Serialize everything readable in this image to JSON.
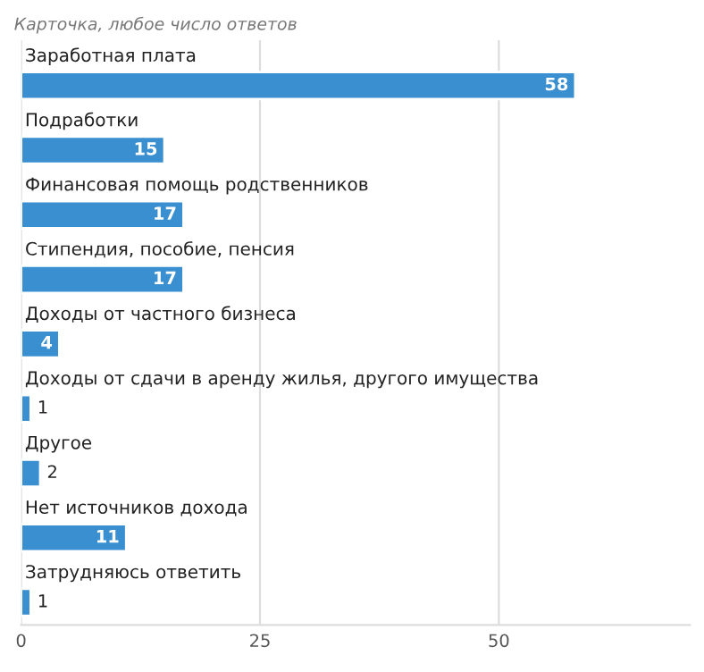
{
  "chart_data": {
    "type": "bar",
    "orientation": "horizontal",
    "title": "Карточка, любое число ответов",
    "categories": [
      "Заработная плата",
      "Подработки",
      "Финансовая помощь родственников",
      "Стипендия, пособие, пенсия",
      "Доходы от частного бизнеса",
      "Доходы от сдачи в аренду жилья, другого имущества",
      "Другое",
      "Нет источников дохода",
      "Затрудняюсь ответить"
    ],
    "values": [
      58,
      15,
      17,
      17,
      4,
      1,
      2,
      11,
      1
    ],
    "color": "#3a8fd0",
    "xlim": [
      0,
      70
    ],
    "xticks": [
      0,
      25,
      50
    ],
    "grid": "x",
    "data_labels": true
  }
}
